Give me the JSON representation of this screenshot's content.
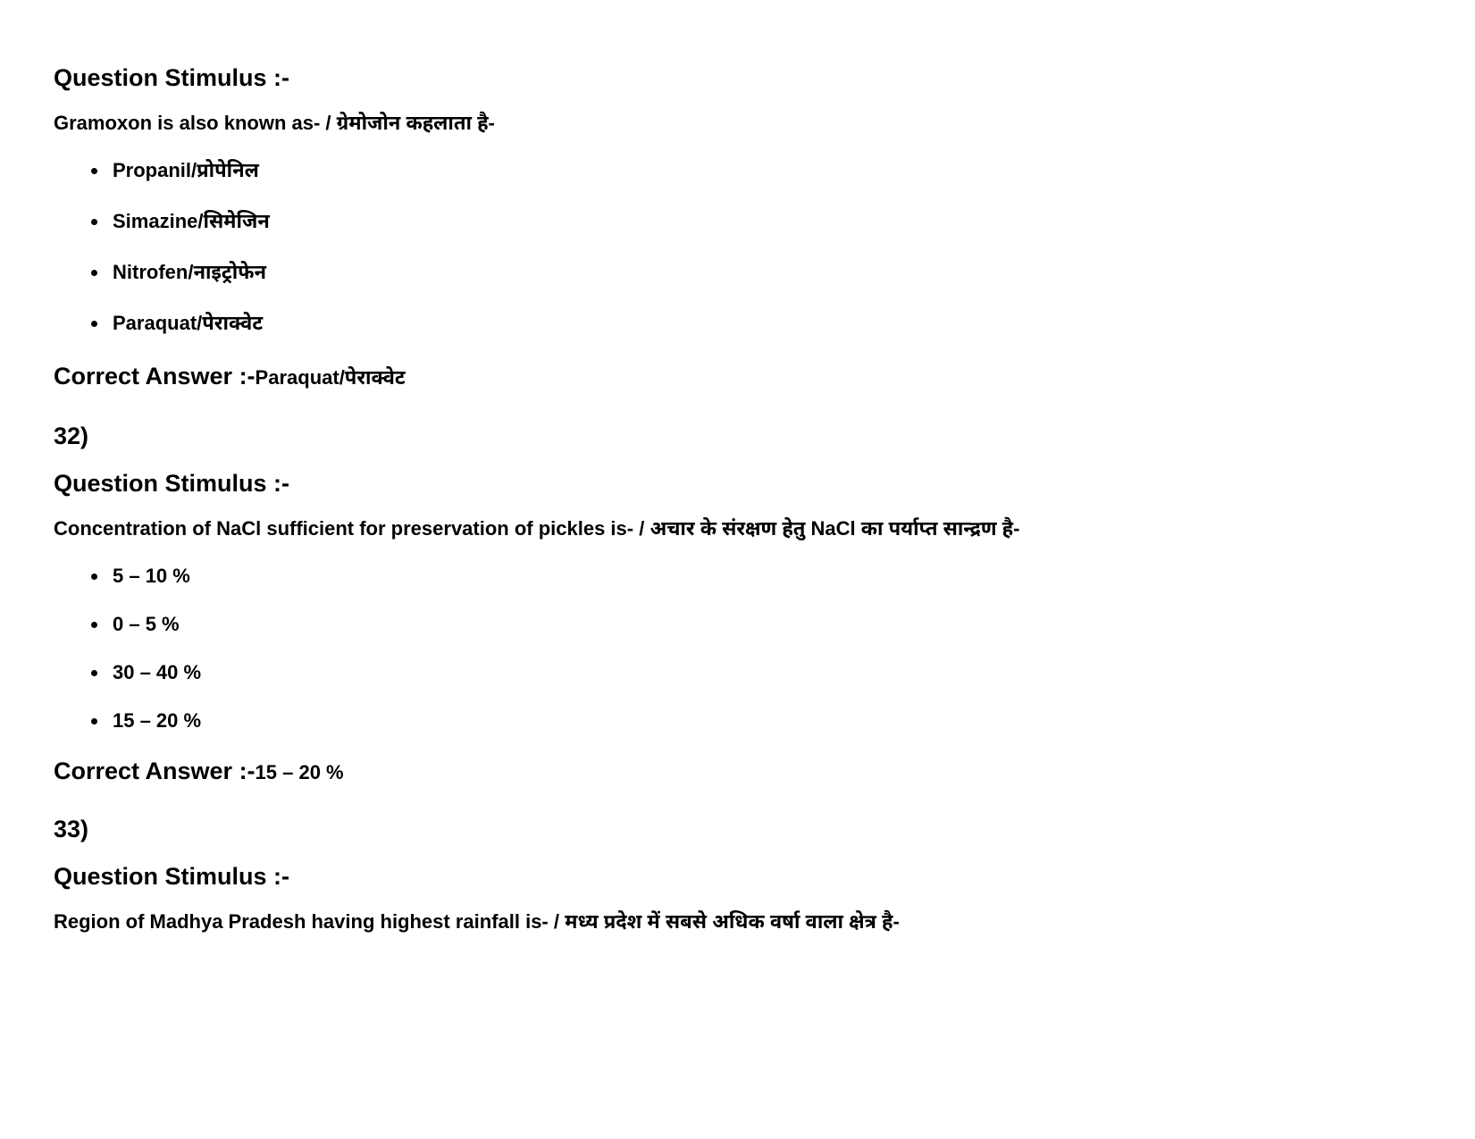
{
  "labels": {
    "question_stimulus": "Question Stimulus :-",
    "correct_answer": "Correct Answer :-"
  },
  "questions": [
    {
      "stem": "Gramoxon is also known as- / ग्रेमोजोन कहलाता है-",
      "options": [
        "Propanil/प्रोपेनिल",
        "Simazine/सिमेजिन",
        "Nitrofen/नाइट्रोफेन",
        "Paraquat/पेराक्वेट"
      ],
      "answer": "Paraquat/पेराक्वेट"
    },
    {
      "number": "32)",
      "stem": "Concentration of NaCl sufficient for preservation of pickles is- / अचार के संरक्षण हेतु NaCl का पर्याप्त सान्द्रण है-",
      "options": [
        "5 – 10 %",
        "0 – 5 %",
        "30 – 40 %",
        "15 – 20 %"
      ],
      "answer": "15 – 20 %"
    },
    {
      "number": "33)",
      "stem": "Region of Madhya Pradesh having highest rainfall is- / मध्य प्रदेश में सबसे अधिक वर्षा वाला क्षेत्र है-"
    }
  ]
}
